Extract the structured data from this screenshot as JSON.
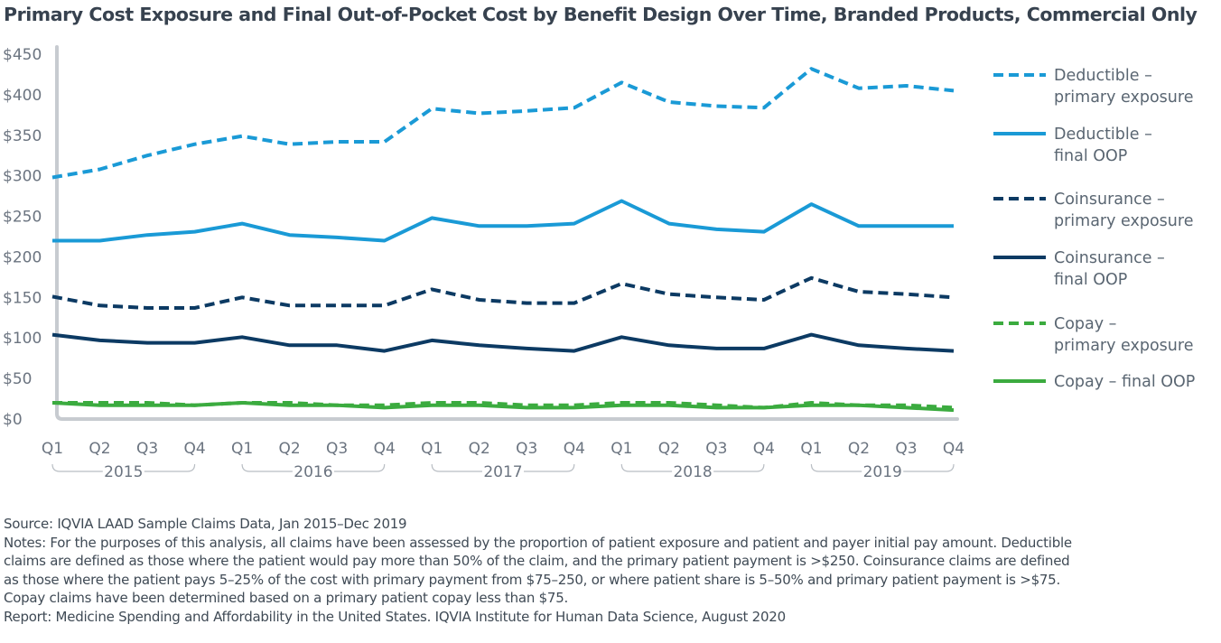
{
  "title": "Primary Cost Exposure and Final Out-of-Pocket Cost by Benefit Design Over Time, Branded Products, Commercial Only",
  "chart_data": {
    "type": "line",
    "title": "Primary Cost Exposure and Final Out-of-Pocket Cost by Benefit Design Over Time, Branded Products, Commercial Only",
    "x_ticks": [
      "Q1",
      "Q2",
      "Q3",
      "Q4",
      "Q1",
      "Q2",
      "Q3",
      "Q4",
      "Q1",
      "Q2",
      "Q3",
      "Q4",
      "Q1",
      "Q2",
      "Q3",
      "Q4",
      "Q1",
      "Q2",
      "Q3",
      "Q4"
    ],
    "years": [
      "2015",
      "2016",
      "2017",
      "2018",
      "2019"
    ],
    "y_ticks": [
      "$0",
      "$50",
      "$100",
      "$150",
      "$200",
      "$250",
      "$300",
      "$350",
      "$400",
      "$450"
    ],
    "ylim": [
      0,
      450
    ],
    "series": [
      {
        "name": "Deductible – primary exposure",
        "legend": [
          "Deductible –",
          "primary exposure"
        ],
        "color": "#1a9ad6",
        "dashed": true,
        "values": [
          298,
          308,
          325,
          339,
          349,
          339,
          342,
          342,
          383,
          377,
          380,
          384,
          415,
          391,
          386,
          384,
          432,
          408,
          411,
          405
        ]
      },
      {
        "name": "Deductible – final OOP",
        "legend": [
          "Deductible –",
          "final OOP"
        ],
        "color": "#1a9ad6",
        "dashed": false,
        "values": [
          220,
          220,
          227,
          231,
          241,
          227,
          224,
          220,
          248,
          238,
          238,
          241,
          269,
          241,
          234,
          231,
          265,
          238,
          238,
          238
        ]
      },
      {
        "name": "Coinsurance – primary exposure",
        "legend": [
          "Coinsurance –",
          "primary exposure"
        ],
        "color": "#0c3a63",
        "dashed": true,
        "values": [
          151,
          140,
          137,
          137,
          150,
          140,
          140,
          140,
          160,
          147,
          143,
          143,
          167,
          154,
          150,
          147,
          174,
          157,
          154,
          150
        ]
      },
      {
        "name": "Coinsurance – final OOP",
        "legend": [
          "Coinsurance –",
          "final OOP"
        ],
        "color": "#0c3a63",
        "dashed": false,
        "values": [
          104,
          97,
          94,
          94,
          101,
          91,
          91,
          84,
          97,
          91,
          87,
          84,
          101,
          91,
          87,
          87,
          104,
          91,
          87,
          84
        ]
      },
      {
        "name": "Copay – primary exposure",
        "legend": [
          "Copay –",
          "primary exposure"
        ],
        "color": "#3bab3f",
        "dashed": true,
        "values": [
          20,
          20,
          20,
          17,
          20,
          20,
          17,
          17,
          20,
          20,
          17,
          17,
          20,
          20,
          17,
          14,
          20,
          17,
          17,
          14
        ]
      },
      {
        "name": "Copay – final OOP",
        "legend": [
          "Copay – final OOP"
        ],
        "color": "#3bab3f",
        "dashed": false,
        "values": [
          20,
          17,
          17,
          17,
          20,
          17,
          17,
          14,
          17,
          17,
          14,
          14,
          17,
          17,
          14,
          14,
          17,
          17,
          14,
          11
        ]
      }
    ]
  },
  "footer": {
    "source": "Source: IQVIA LAAD Sample Claims Data, Jan 2015–Dec 2019",
    "notes": [
      "Notes: For the purposes of this analysis, all claims have been assessed by the proportion of patient exposure and patient and payer initial pay amount. Deductible",
      "claims are defined as those where the patient would pay more than 50% of the claim, and the primary patient payment is >$250. Coinsurance claims are defined",
      "as those where the patient pays 5–25% of the cost with primary payment from $75–250, or where patient share is 5–50% and primary patient payment is >$75.",
      "Copay claims have been determined based on a primary patient copay less than $75."
    ],
    "report": "Report: Medicine Spending and Affordability in the United States. IQVIA Institute for Human Data Science, August 2020"
  }
}
